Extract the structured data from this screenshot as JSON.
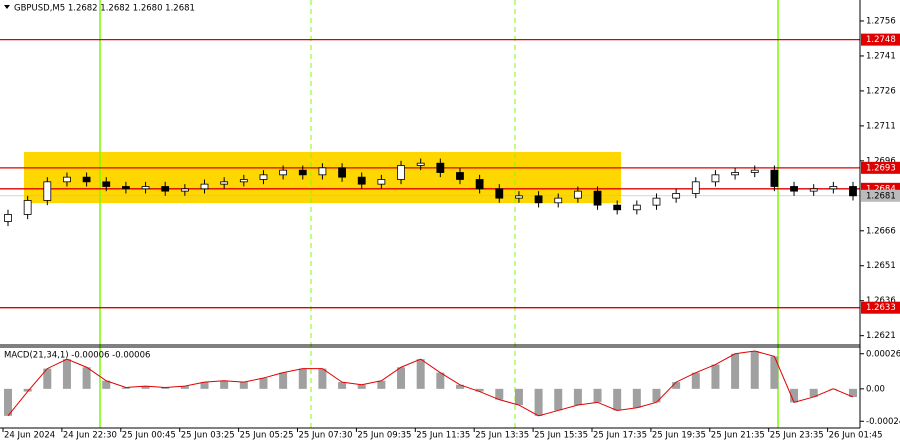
{
  "chart_data": [
    {
      "type": "candlestick",
      "title": "GBPUSD,M5  1.2682 1.2682 1.2680 1.2681",
      "x_labels": [
        "24 Jun 2024",
        "24 Jun 22:30",
        "25 Jun 00:45",
        "25 Jun 03:25",
        "25 Jun 05:25",
        "25 Jun 07:30",
        "25 Jun 09:35",
        "25 Jun 11:35",
        "25 Jun 13:35",
        "25 Jun 15:35",
        "25 Jun 17:35",
        "25 Jun 19:35",
        "25 Jun 21:35",
        "25 Jun 23:35",
        "26 Jun 01:45"
      ],
      "open": [
        1.267,
        1.2673,
        1.2679,
        1.2687,
        1.2689,
        1.2687,
        1.2685,
        1.2684,
        1.2685,
        1.2683,
        1.2684,
        1.2686,
        1.2687,
        1.2688,
        1.269,
        1.2692,
        1.269,
        1.2693,
        1.2689,
        1.2686,
        1.2688,
        1.2694,
        1.2695,
        1.2691,
        1.2688,
        1.2684,
        1.268,
        1.2681,
        1.2678,
        1.268,
        1.2683,
        1.2677,
        1.2675,
        1.2677,
        1.268,
        1.2682,
        1.2687,
        1.269,
        1.2691,
        1.2692,
        1.2685,
        1.2683,
        1.2684,
        1.2685
      ],
      "high": [
        1.2675,
        1.2681,
        1.2689,
        1.2691,
        1.2691,
        1.2689,
        1.2687,
        1.2687,
        1.2687,
        1.2686,
        1.2688,
        1.2689,
        1.269,
        1.2692,
        1.2694,
        1.2694,
        1.2695,
        1.2695,
        1.2691,
        1.269,
        1.2696,
        1.2697,
        1.2697,
        1.2693,
        1.269,
        1.2686,
        1.2683,
        1.2683,
        1.2682,
        1.2685,
        1.2685,
        1.2679,
        1.2679,
        1.2682,
        1.2684,
        1.2689,
        1.2692,
        1.2693,
        1.2694,
        1.2694,
        1.2687,
        1.2686,
        1.2687,
        1.2687
      ],
      "low": [
        1.2668,
        1.2671,
        1.2677,
        1.2685,
        1.2685,
        1.2683,
        1.2682,
        1.2682,
        1.2681,
        1.2681,
        1.2682,
        1.2684,
        1.2685,
        1.2686,
        1.2688,
        1.2688,
        1.2688,
        1.2687,
        1.2684,
        1.2684,
        1.2686,
        1.2692,
        1.2689,
        1.2686,
        1.2682,
        1.2678,
        1.2678,
        1.2676,
        1.2676,
        1.2678,
        1.2675,
        1.2673,
        1.2673,
        1.2675,
        1.2678,
        1.268,
        1.2685,
        1.2688,
        1.2689,
        1.2683,
        1.2681,
        1.2681,
        1.2682,
        1.2679
      ],
      "close": [
        1.2673,
        1.2679,
        1.2687,
        1.2689,
        1.2687,
        1.2685,
        1.2684,
        1.2685,
        1.2683,
        1.2684,
        1.2686,
        1.2687,
        1.2688,
        1.269,
        1.2692,
        1.269,
        1.2693,
        1.2689,
        1.2686,
        1.2688,
        1.2694,
        1.2695,
        1.2691,
        1.2688,
        1.2684,
        1.268,
        1.2681,
        1.2678,
        1.268,
        1.2683,
        1.2677,
        1.2675,
        1.2677,
        1.268,
        1.2682,
        1.2687,
        1.269,
        1.2691,
        1.2692,
        1.2685,
        1.2683,
        1.2684,
        1.2685,
        1.2681
      ],
      "ylim": [
        1.2617,
        1.2765
      ],
      "yticks": [
        1.2756,
        1.2741,
        1.2726,
        1.2711,
        1.2696,
        1.2666,
        1.2651,
        1.2636,
        1.2621
      ],
      "levels": [
        1.2748,
        1.2693,
        1.2684,
        1.2633
      ],
      "level_color": "#e00000",
      "last_price": 1.2681,
      "up_color": "#ffffff",
      "down_color": "#000000"
    },
    {
      "type": "macd",
      "title": "MACD(21,34,1) -0.00006 -0.00006",
      "values": [
        -0.0002,
        -2e-05,
        0.00015,
        0.00022,
        0.00016,
        6e-05,
        1e-05,
        2e-05,
        1e-05,
        2e-05,
        5e-05,
        6e-05,
        5e-05,
        8e-05,
        0.00012,
        0.00015,
        0.00015,
        5e-05,
        3e-05,
        6e-05,
        0.00016,
        0.00022,
        0.00012,
        3e-05,
        -2e-05,
        -8e-05,
        -0.00012,
        -0.0002,
        -0.00016,
        -0.00012,
        -0.0001,
        -0.00016,
        -0.00014,
        -0.0001,
        5e-05,
        0.00012,
        0.00018,
        0.00026,
        0.00028,
        0.00024,
        -0.0001,
        -6e-05,
        0.0,
        -6e-05
      ],
      "signal": [
        -0.0002,
        -2e-05,
        0.00015,
        0.00022,
        0.00016,
        6e-05,
        1e-05,
        2e-05,
        1e-05,
        2e-05,
        5e-05,
        6e-05,
        5e-05,
        8e-05,
        0.00012,
        0.00015,
        0.00015,
        5e-05,
        3e-05,
        6e-05,
        0.00016,
        0.00022,
        0.00012,
        3e-05,
        -2e-05,
        -8e-05,
        -0.00012,
        -0.0002,
        -0.00016,
        -0.00012,
        -0.0001,
        -0.00016,
        -0.00014,
        -0.0001,
        5e-05,
        0.00012,
        0.00018,
        0.00026,
        0.00028,
        0.00024,
        -0.0001,
        -6e-05,
        0.0,
        -6e-05
      ],
      "bar_color": "#a0a0a0",
      "signal_color": "#e00000",
      "ylim": [
        -0.00029,
        0.00031
      ],
      "yticks": [
        0.00026,
        {
          "value": 0,
          "label": "0.00"
        },
        -0.00024
      ]
    }
  ]
}
